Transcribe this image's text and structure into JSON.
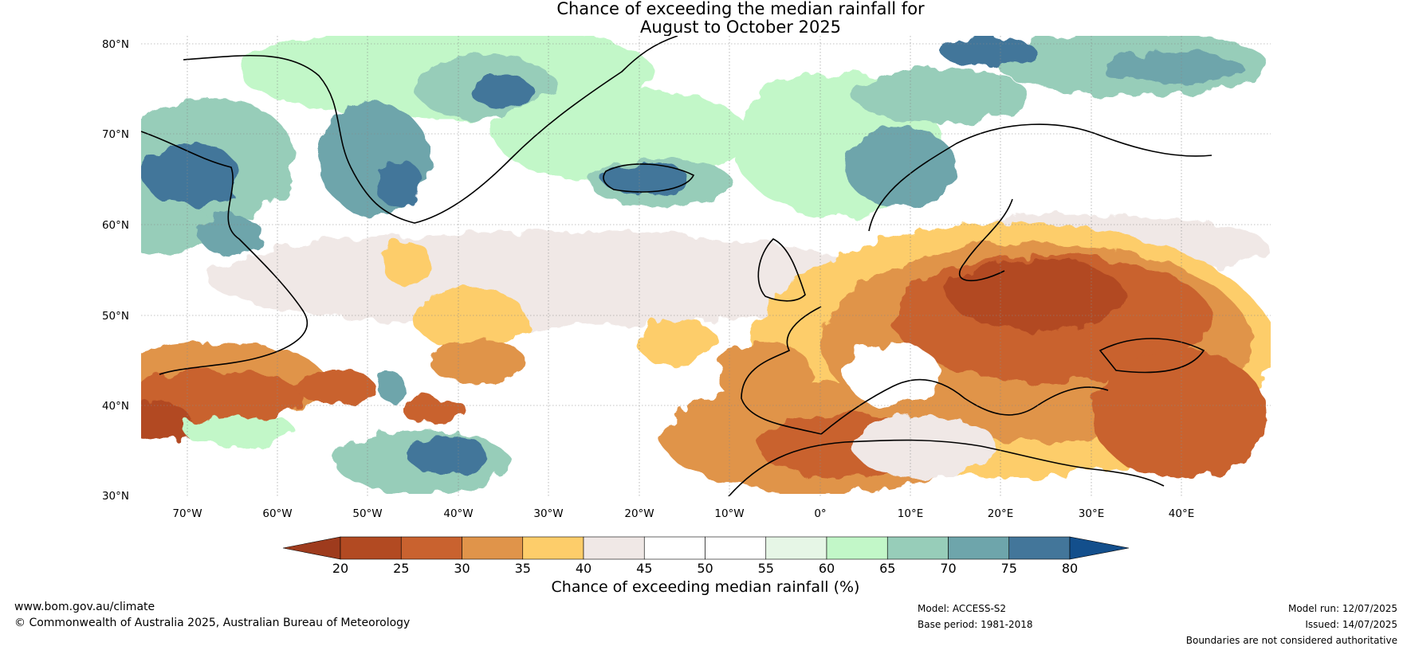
{
  "title": {
    "line1": "Chance of exceeding the median rainfall for",
    "line2": "August to October 2025"
  },
  "map": {
    "lat_labels": [
      "80°N",
      "70°N",
      "60°N",
      "50°N",
      "40°N",
      "30°N"
    ],
    "lon_labels": [
      "70°W",
      "60°W",
      "50°W",
      "40°W",
      "30°W",
      "20°W",
      "10°W",
      "0°",
      "10°E",
      "20°E",
      "30°E",
      "40°E"
    ]
  },
  "colorbar": {
    "ticks": [
      "20",
      "25",
      "30",
      "35",
      "40",
      "45",
      "50",
      "55",
      "60",
      "65",
      "70",
      "75",
      "80"
    ],
    "colors": [
      "#b24a22",
      "#c9622f",
      "#e0944a",
      "#fdcd6a",
      "#f0e8e6",
      "#ffffff",
      "#ffffff",
      "#e6f6e6",
      "#c2f7c8",
      "#97cdb9",
      "#6ea5ab",
      "#43769a"
    ],
    "low_end_color": "#9e3b1d",
    "high_end_color": "#134f8c",
    "label": "Chance of exceeding median rainfall (%)"
  },
  "footer": {
    "website": "www.bom.gov.au/climate",
    "copyright": "© Commonwealth of Australia 2025, Australian Bureau of Meteorology",
    "model": "Model: ACCESS-S2",
    "base_period": "Base period: 1981-2018",
    "model_run": "Model run: 12/07/2025",
    "issued": "Issued: 14/07/2025",
    "disclaimer": "Boundaries are not considered authoritative"
  }
}
